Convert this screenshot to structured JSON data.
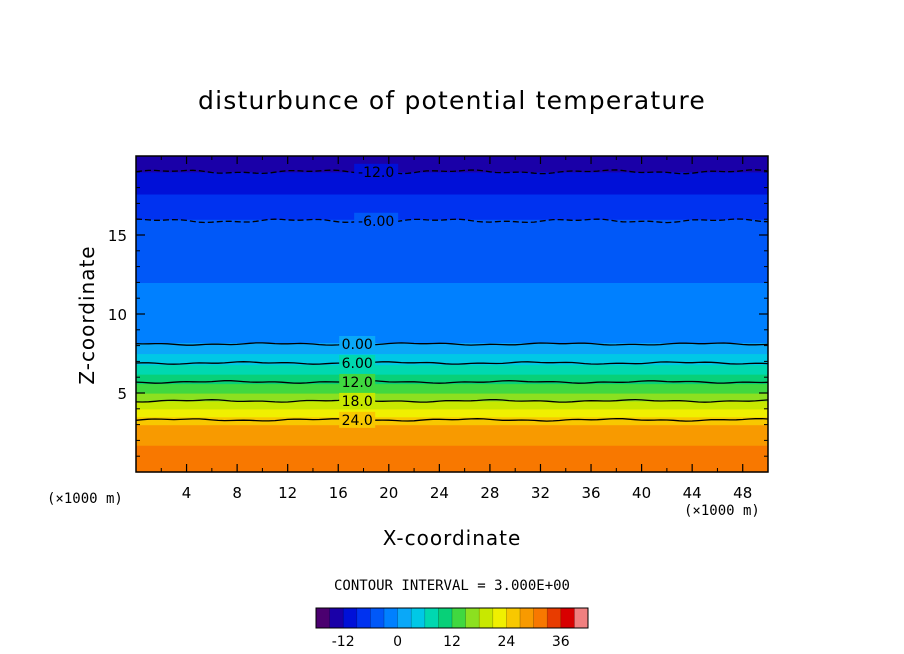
{
  "chart_data": {
    "type": "heatmap",
    "title": "disturbunce of potential temperature",
    "xlabel": "X-coordinate",
    "ylabel": "Z-coordinate",
    "x_unit_left": "(×1000 m)",
    "x_unit_right": "(×1000 m)",
    "xlim": [
      0,
      50
    ],
    "ylim": [
      0,
      20
    ],
    "x_ticks": [
      4,
      8,
      12,
      16,
      20,
      24,
      28,
      32,
      36,
      40,
      44,
      48
    ],
    "x_tick_labels": [
      "4",
      "8",
      "12",
      "16",
      "20",
      "24",
      "28",
      "32",
      "36",
      "40",
      "44",
      "48"
    ],
    "y_ticks": [
      5,
      10,
      15
    ],
    "y_tick_labels": [
      "5",
      "10",
      "15"
    ],
    "contour_interval_text": "CONTOUR INTERVAL = 3.000E+00",
    "contour_labels": [
      {
        "text": "-12.0",
        "value": -12,
        "x": 19,
        "z": 19.0
      },
      {
        "text": "-6.00",
        "value": -6,
        "x": 19,
        "z": 15.9
      },
      {
        "text": "0.00",
        "value": 0,
        "x": 17.5,
        "z": 8.1
      },
      {
        "text": "6.00",
        "value": 6,
        "x": 17.5,
        "z": 6.9
      },
      {
        "text": "12.0",
        "value": 12,
        "x": 17.5,
        "z": 5.7
      },
      {
        "text": "18.0",
        "value": 18,
        "x": 17.5,
        "z": 4.5
      },
      {
        "text": "24.0",
        "value": 24,
        "x": 17.5,
        "z": 3.3
      }
    ],
    "field_profile": [
      {
        "z": 0.0,
        "value": 31.5
      },
      {
        "z": 2.8,
        "value": 29.0
      },
      {
        "z": 3.0,
        "value": 27.0
      },
      {
        "z": 4.0,
        "value": 21.0
      },
      {
        "z": 5.0,
        "value": 15.0
      },
      {
        "z": 6.0,
        "value": 10.0
      },
      {
        "z": 7.0,
        "value": 5.0
      },
      {
        "z": 8.2,
        "value": 0.0
      },
      {
        "z": 9.0,
        "value": -2.0
      },
      {
        "z": 12.0,
        "value": -3.0
      },
      {
        "z": 15.0,
        "value": -4.5
      },
      {
        "z": 16.0,
        "value": -6.0
      },
      {
        "z": 17.6,
        "value": -9.0
      },
      {
        "z": 19.0,
        "value": -12.0
      },
      {
        "z": 20.0,
        "value": -14.0
      }
    ],
    "colorbar": {
      "min": -18,
      "max": 39,
      "step": 3,
      "tick_values": [
        -12,
        0,
        12,
        24,
        36
      ],
      "tick_labels": [
        "-12",
        "0",
        "12",
        "24",
        "36"
      ],
      "colors": [
        "#4b0070",
        "#1a00a8",
        "#0010d8",
        "#0032f0",
        "#0058f8",
        "#0080ff",
        "#0aa8f8",
        "#00c8e6",
        "#00d8b0",
        "#08d078",
        "#40d840",
        "#8ce020",
        "#c8e800",
        "#f0f000",
        "#f8c800",
        "#f89a00",
        "#f87800",
        "#e83c00",
        "#d80000",
        "#f08080"
      ]
    }
  }
}
